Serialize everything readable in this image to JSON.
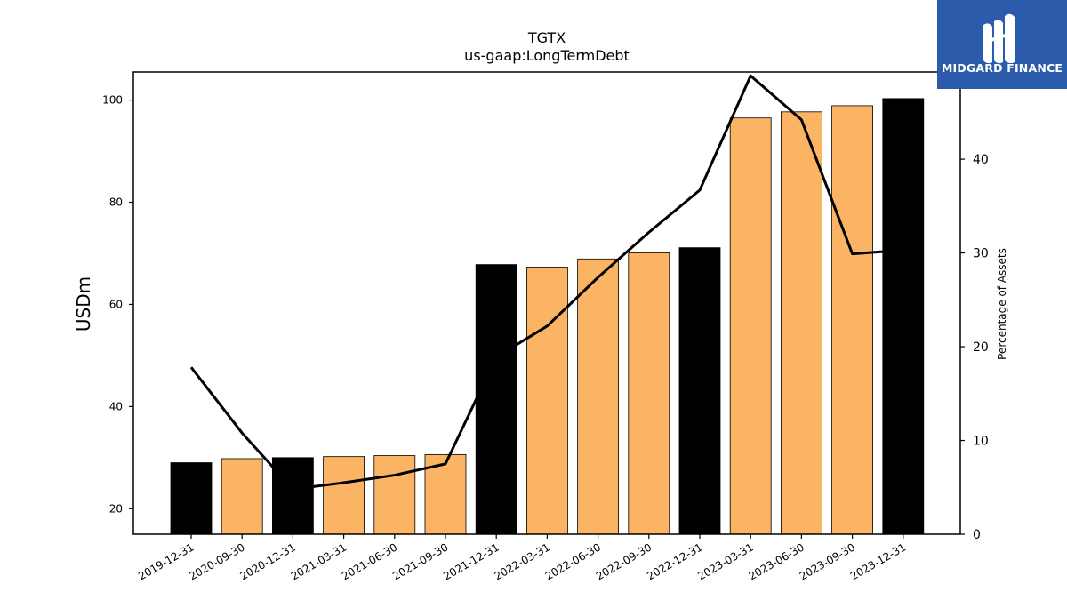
{
  "brand": {
    "name": "MIDGARD FINANCE",
    "bg_color": "#2d5bab",
    "text_color": "#ffffff"
  },
  "chart_data": {
    "type": "bar",
    "title": "TGTX",
    "subtitle": "us-gaap:LongTermDebt",
    "ylabel": "USDm",
    "y2label": "Percentage of Assets",
    "ylim": [
      15,
      105.5
    ],
    "y2lim": [
      0,
      49.3
    ],
    "yticks": [
      20,
      40,
      60,
      80,
      100
    ],
    "y2ticks": [
      0,
      10,
      20,
      30,
      40
    ],
    "categories": [
      "2019-12-31",
      "2020-09-30",
      "2020-12-31",
      "2021-03-31",
      "2021-06-30",
      "2021-09-30",
      "2021-12-31",
      "2022-03-31",
      "2022-06-30",
      "2022-09-30",
      "2022-12-31",
      "2023-03-31",
      "2023-06-30",
      "2023-09-30",
      "2023-12-31"
    ],
    "series": [
      {
        "type": "bar",
        "axis": "left",
        "values": [
          29.0,
          29.8,
          30.0,
          30.2,
          30.4,
          30.6,
          67.8,
          67.3,
          68.9,
          70.1,
          71.1,
          96.5,
          97.7,
          98.9,
          100.3
        ],
        "bar_colors": [
          "#000000",
          "#fbb464",
          "#000000",
          "#fbb464",
          "#fbb464",
          "#fbb464",
          "#000000",
          "#fbb464",
          "#fbb464",
          "#fbb464",
          "#000000",
          "#fbb464",
          "#fbb464",
          "#fbb464",
          "#000000"
        ]
      },
      {
        "type": "line",
        "axis": "right",
        "color": "#000000",
        "values": [
          17.8,
          10.8,
          4.8,
          5.5,
          6.3,
          7.5,
          18.9,
          22.2,
          27.4,
          32.2,
          36.7,
          48.9,
          44.2,
          29.9,
          30.3
        ]
      }
    ],
    "grid": false,
    "legend": "none"
  }
}
